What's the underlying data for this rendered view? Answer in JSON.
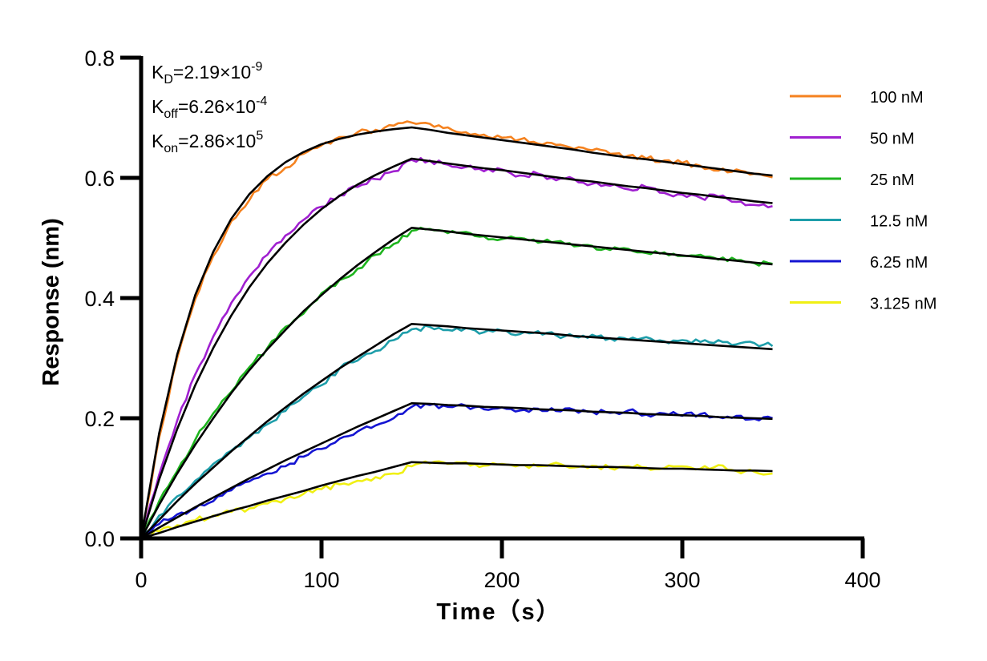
{
  "chart_data": {
    "type": "line",
    "title": "",
    "xlabel": "Time（s）",
    "ylabel": "Response (nm)",
    "xlim": [
      0,
      400
    ],
    "ylim": [
      0,
      0.8
    ],
    "xticks": [
      0,
      100,
      200,
      300,
      400
    ],
    "xtick_labels": [
      "0",
      "100",
      "200",
      "300",
      "400"
    ],
    "yticks": [
      0,
      0.2,
      0.4,
      0.6,
      0.8
    ],
    "ytick_labels": [
      "0.0",
      "0.2",
      "0.4",
      "0.6",
      "0.8"
    ],
    "grid": false,
    "legend_position": "right",
    "annotations": {
      "kd": {
        "main": "K",
        "sub": "D",
        "value": "=2.19×10",
        "exp": "-9"
      },
      "koff": {
        "main": "K",
        "sub": "off",
        "value": "=6.26×10",
        "exp": "-4"
      },
      "kon": {
        "main": "K",
        "sub": "on",
        "value": "=2.86×10",
        "exp": "5"
      }
    },
    "fit_color": "#000000",
    "x": [
      0,
      10,
      20,
      30,
      40,
      50,
      60,
      70,
      80,
      90,
      100,
      110,
      120,
      130,
      140,
      150,
      160,
      170,
      180,
      190,
      200,
      210,
      220,
      230,
      240,
      250,
      260,
      270,
      280,
      290,
      300,
      310,
      320,
      330,
      340,
      350
    ],
    "series": [
      {
        "name": "100 nM",
        "color": "#F5821F",
        "fit": [
          0,
          0.175,
          0.306,
          0.405,
          0.477,
          0.532,
          0.573,
          0.603,
          0.626,
          0.643,
          0.656,
          0.665,
          0.672,
          0.677,
          0.681,
          0.684,
          0.68,
          0.675,
          0.671,
          0.667,
          0.663,
          0.659,
          0.655,
          0.651,
          0.647,
          0.642,
          0.638,
          0.634,
          0.631,
          0.627,
          0.623,
          0.619,
          0.615,
          0.611,
          0.607,
          0.604
        ],
        "measured": [
          0,
          0.168,
          0.3,
          0.398,
          0.47,
          0.528,
          0.563,
          0.598,
          0.617,
          0.64,
          0.654,
          0.668,
          0.676,
          0.68,
          0.687,
          0.692,
          0.69,
          0.684,
          0.676,
          0.672,
          0.667,
          0.664,
          0.657,
          0.655,
          0.648,
          0.646,
          0.64,
          0.637,
          0.632,
          0.629,
          0.625,
          0.62,
          0.612,
          0.614,
          0.607,
          0.601
        ]
      },
      {
        "name": "50 nM",
        "color": "#A020D0",
        "fit": [
          0,
          0.098,
          0.182,
          0.255,
          0.317,
          0.371,
          0.418,
          0.458,
          0.492,
          0.522,
          0.548,
          0.57,
          0.589,
          0.605,
          0.619,
          0.632,
          0.628,
          0.624,
          0.62,
          0.616,
          0.613,
          0.609,
          0.605,
          0.601,
          0.597,
          0.594,
          0.59,
          0.586,
          0.583,
          0.579,
          0.575,
          0.572,
          0.568,
          0.565,
          0.561,
          0.558
        ],
        "measured": [
          0,
          0.106,
          0.196,
          0.273,
          0.336,
          0.392,
          0.436,
          0.472,
          0.504,
          0.53,
          0.552,
          0.571,
          0.585,
          0.598,
          0.611,
          0.63,
          0.629,
          0.622,
          0.618,
          0.611,
          0.614,
          0.604,
          0.607,
          0.596,
          0.598,
          0.59,
          0.587,
          0.581,
          0.585,
          0.575,
          0.572,
          0.567,
          0.569,
          0.56,
          0.555,
          0.553
        ]
      },
      {
        "name": "25 nM",
        "color": "#1EB41E",
        "fit": [
          0,
          0.056,
          0.108,
          0.156,
          0.2,
          0.242,
          0.28,
          0.315,
          0.347,
          0.378,
          0.405,
          0.431,
          0.455,
          0.477,
          0.498,
          0.517,
          0.514,
          0.511,
          0.507,
          0.504,
          0.501,
          0.498,
          0.495,
          0.492,
          0.489,
          0.486,
          0.483,
          0.48,
          0.477,
          0.474,
          0.471,
          0.468,
          0.465,
          0.462,
          0.459,
          0.456
        ],
        "measured": [
          0,
          0.062,
          0.112,
          0.164,
          0.208,
          0.244,
          0.285,
          0.317,
          0.352,
          0.374,
          0.408,
          0.43,
          0.449,
          0.472,
          0.49,
          0.512,
          0.515,
          0.508,
          0.51,
          0.503,
          0.498,
          0.5,
          0.492,
          0.494,
          0.486,
          0.487,
          0.48,
          0.482,
          0.475,
          0.476,
          0.47,
          0.472,
          0.464,
          0.463,
          0.458,
          0.457
        ]
      },
      {
        "name": "12.5 nM",
        "color": "#1E9EAA",
        "fit": [
          0,
          0.031,
          0.062,
          0.091,
          0.118,
          0.145,
          0.17,
          0.195,
          0.218,
          0.241,
          0.262,
          0.283,
          0.302,
          0.321,
          0.34,
          0.357,
          0.355,
          0.353,
          0.35,
          0.348,
          0.346,
          0.344,
          0.342,
          0.34,
          0.337,
          0.335,
          0.333,
          0.331,
          0.329,
          0.327,
          0.325,
          0.323,
          0.321,
          0.319,
          0.317,
          0.315
        ],
        "measured": [
          0,
          0.038,
          0.07,
          0.096,
          0.124,
          0.146,
          0.168,
          0.19,
          0.212,
          0.236,
          0.255,
          0.283,
          0.296,
          0.312,
          0.33,
          0.348,
          0.352,
          0.347,
          0.35,
          0.343,
          0.346,
          0.34,
          0.345,
          0.338,
          0.336,
          0.339,
          0.333,
          0.331,
          0.335,
          0.328,
          0.33,
          0.327,
          0.33,
          0.323,
          0.325,
          0.32
        ]
      },
      {
        "name": "6.25 nM",
        "color": "#1414D2",
        "fit": [
          0,
          0.018,
          0.035,
          0.052,
          0.068,
          0.084,
          0.1,
          0.115,
          0.13,
          0.144,
          0.158,
          0.172,
          0.186,
          0.199,
          0.212,
          0.225,
          0.224,
          0.222,
          0.221,
          0.219,
          0.218,
          0.217,
          0.215,
          0.214,
          0.213,
          0.211,
          0.21,
          0.209,
          0.207,
          0.206,
          0.205,
          0.204,
          0.202,
          0.201,
          0.2,
          0.199
        ],
        "measured": [
          0,
          0.024,
          0.04,
          0.05,
          0.062,
          0.08,
          0.095,
          0.108,
          0.12,
          0.136,
          0.149,
          0.166,
          0.178,
          0.188,
          0.2,
          0.219,
          0.222,
          0.219,
          0.221,
          0.215,
          0.218,
          0.213,
          0.216,
          0.212,
          0.214,
          0.211,
          0.209,
          0.213,
          0.206,
          0.208,
          0.204,
          0.207,
          0.202,
          0.204,
          0.199,
          0.2
        ]
      },
      {
        "name": "3.125 nM",
        "color": "#F0F014",
        "fit": [
          0,
          0.009,
          0.019,
          0.028,
          0.037,
          0.046,
          0.054,
          0.063,
          0.071,
          0.079,
          0.088,
          0.096,
          0.104,
          0.111,
          0.119,
          0.127,
          0.126,
          0.125,
          0.125,
          0.124,
          0.123,
          0.122,
          0.122,
          0.121,
          0.12,
          0.119,
          0.119,
          0.118,
          0.117,
          0.116,
          0.116,
          0.115,
          0.114,
          0.113,
          0.113,
          0.112
        ],
        "measured": [
          0,
          0.012,
          0.022,
          0.03,
          0.038,
          0.044,
          0.05,
          0.058,
          0.066,
          0.074,
          0.082,
          0.09,
          0.096,
          0.102,
          0.108,
          0.12,
          0.125,
          0.124,
          0.127,
          0.121,
          0.124,
          0.122,
          0.12,
          0.126,
          0.118,
          0.121,
          0.117,
          0.12,
          0.118,
          0.117,
          0.12,
          0.116,
          0.122,
          0.112,
          0.111,
          0.108
        ]
      }
    ]
  }
}
